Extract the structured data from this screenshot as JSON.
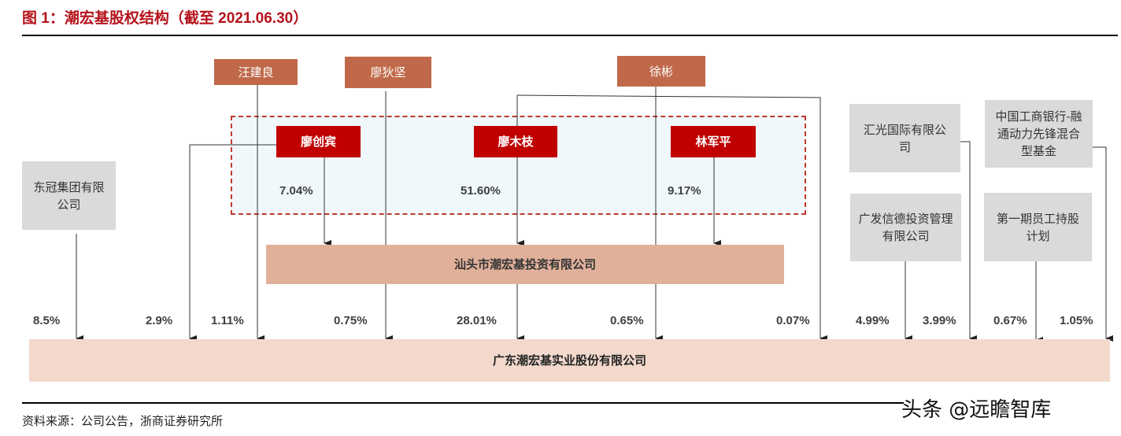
{
  "title": "图 1：潮宏基股权结构（截至 2021.06.30）",
  "shareholders_top": {
    "wang_jianliang": "汪建良",
    "liao_dijian": "廖狄坚",
    "xu_bin": "徐彬"
  },
  "family_group": {
    "liao_chuangbin": "廖创宾",
    "liao_muzhi": "廖木枝",
    "lin_junping": "林军平",
    "pct_liao_chuangbin": "7.04%",
    "pct_liao_muzhi": "51.60%",
    "pct_lin_junping": "9.17%"
  },
  "institutions": {
    "dongguan": "东冠集团有限公司",
    "huiguang": "汇光国际有限公司",
    "icbc_fund": "中国工商银行-融通动力先锋混合型基金",
    "gf_xinde": "广发信德投资管理有限公司",
    "esop": "第一期员工持股计划"
  },
  "holding_company": "汕头市潮宏基投资有限公司",
  "target_company": "广东潮宏基实业股份有限公司",
  "stakes": {
    "dongguan": "8.5%",
    "liao_chuangbin": "2.9%",
    "wang_jianliang": "1.11%",
    "liao_dijian": "0.75%",
    "holding_company": "28.01%",
    "xu_bin": "0.65%",
    "liao_muzhi": "0.07%",
    "gf_xinde": "4.99%",
    "huiguang": "3.99%",
    "esop": "0.67%",
    "icbc_fund": "1.05%"
  },
  "source": "资料来源：公司公告，浙商证券研究所",
  "watermark": "头条 @远瞻智库"
}
